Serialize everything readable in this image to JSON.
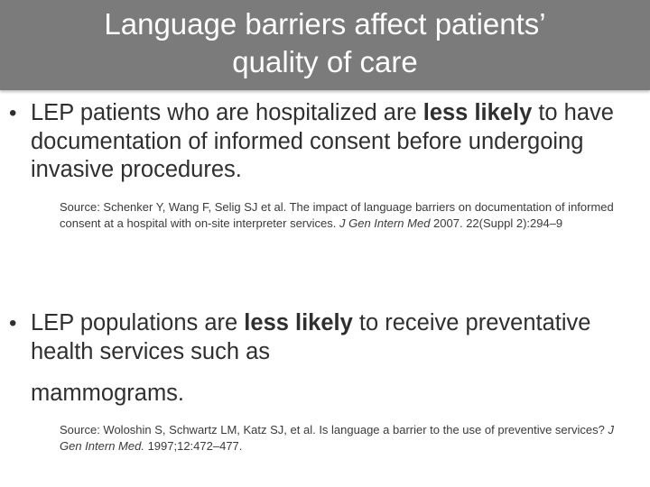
{
  "slide": {
    "title_line1": "Language barriers affect patients’",
    "title_line2": "quality of care"
  },
  "bullets": [
    {
      "marker": "•",
      "pre": "LEP patients who are hospitalized are ",
      "bold": "less likely",
      "post1": " to have documentation of informed consent before undergoing invasive procedures.",
      "source_pre": "Source: Schenker Y, Wang F, Selig SJ et al.  The impact of language barriers on documentation of informed consent at a hospital with on-site interpreter services. ",
      "source_journal": "J Gen Intern Med",
      "source_post": " 2007. 22(Suppl 2):294–9"
    },
    {
      "marker": "•",
      "pre": "LEP populations are ",
      "bold": "less likely",
      "post1": " to receive preventative health services such as",
      "post2": "mammograms.",
      "source_pre": "Source: Woloshin S, Schwartz LM, Katz SJ, et al. Is language a barrier to the use of preventive services? ",
      "source_journal": "J Gen Intern Med.",
      "source_post": " 1997;12:472–477."
    }
  ]
}
